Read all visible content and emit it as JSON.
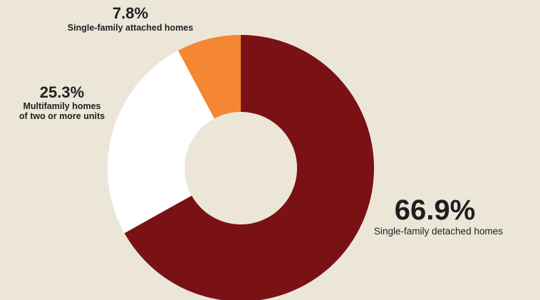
{
  "chart_data": {
    "type": "pie",
    "donut": true,
    "slices": [
      {
        "value": 66.9,
        "label": "66.9%",
        "category": "Single-family detached homes",
        "color": "#7a1115"
      },
      {
        "value": 25.3,
        "label": "25.3%",
        "category": "Multifamily homes\nof two or more units",
        "color": "#ffffff"
      },
      {
        "value": 7.8,
        "label": "7.8%",
        "category": "Single-family attached homes",
        "color": "#f58634"
      }
    ],
    "start_angle_deg": 0,
    "direction": "clockwise"
  }
}
